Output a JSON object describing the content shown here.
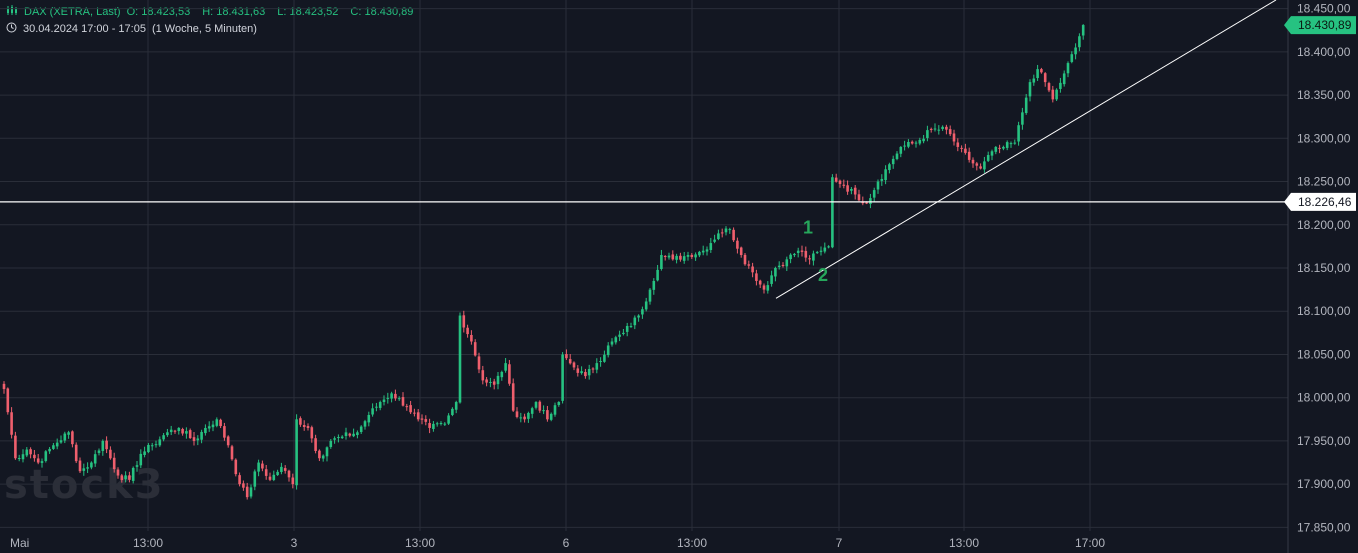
{
  "header": {
    "symbol": "DAX (XETRA, Last)",
    "open_label": "O:",
    "open": "18.423,53",
    "high_label": "H:",
    "high": "18.431,63",
    "low_label": "L:",
    "low": "18.423,52",
    "close_label": "C:",
    "close": "18.430,89",
    "timestamp": "30.04.2024 17:00 - 17:05",
    "period": "(1 Woche, 5 Minuten)",
    "candle_icon": "candlestick-icon",
    "clock_icon": "clock-icon"
  },
  "watermark": "stock3",
  "colors": {
    "background": "#131722",
    "up": "#26c281",
    "down": "#ef5f6d",
    "grid": "#2a2e39",
    "line": "#ffffff",
    "annotation": "#26a65b"
  },
  "chart_data": {
    "type": "candlestick",
    "x_tick_labels": [
      "Mai",
      "13:00",
      "3",
      "13:00",
      "6",
      "13:00",
      "7",
      "13:00",
      "17:00"
    ],
    "y_tick_labels": [
      "18.450,00",
      "18.400,00",
      "18.350,00",
      "18.300,00",
      "18.250,00",
      "18.200,00",
      "18.150,00",
      "18.100,00",
      "18.050,00",
      "18.000,00",
      "17.950,00",
      "17.900,00",
      "17.850,00"
    ],
    "ylim": [
      17840,
      18460
    ],
    "y_ticks": [
      18450,
      18400,
      18350,
      18300,
      18250,
      18200,
      18150,
      18100,
      18050,
      18000,
      17950,
      17900,
      17850
    ],
    "last_price_label": "18.430,89",
    "last_price": 18430.89,
    "horizontal_line_label": "18.226,46",
    "horizontal_line": 18226.46,
    "trendline": {
      "from_price": 18115,
      "to_price": 18460
    },
    "annotations": [
      {
        "text": "1",
        "price": 18197
      },
      {
        "text": "2",
        "price": 18142
      }
    ],
    "path": [
      {
        "c": 0,
        "v": 18010
      },
      {
        "c": 3,
        "v": 17930
      },
      {
        "c": 6,
        "v": 17940
      },
      {
        "c": 9,
        "v": 17925
      },
      {
        "c": 13,
        "v": 17945
      },
      {
        "c": 17,
        "v": 17960
      },
      {
        "c": 20,
        "v": 17915
      },
      {
        "c": 23,
        "v": 17925
      },
      {
        "c": 26,
        "v": 17950
      },
      {
        "c": 30,
        "v": 17910
      },
      {
        "c": 33,
        "v": 17905
      },
      {
        "c": 36,
        "v": 17935
      },
      {
        "c": 39,
        "v": 17945
      },
      {
        "c": 43,
        "v": 17960
      },
      {
        "c": 46,
        "v": 17965
      },
      {
        "c": 50,
        "v": 17950
      },
      {
        "c": 53,
        "v": 17965
      },
      {
        "c": 56,
        "v": 17975
      },
      {
        "c": 59,
        "v": 17945
      },
      {
        "c": 62,
        "v": 17900
      },
      {
        "c": 64,
        "v": 17885
      },
      {
        "c": 67,
        "v": 17925
      },
      {
        "c": 70,
        "v": 17905
      },
      {
        "c": 73,
        "v": 17920
      },
      {
        "c": 76,
        "v": 17900
      },
      {
        "c": 77,
        "v": 17975
      },
      {
        "c": 80,
        "v": 17965
      },
      {
        "c": 83,
        "v": 17930
      },
      {
        "c": 86,
        "v": 17950
      },
      {
        "c": 89,
        "v": 17955
      },
      {
        "c": 93,
        "v": 17960
      },
      {
        "c": 96,
        "v": 17980
      },
      {
        "c": 99,
        "v": 17995
      },
      {
        "c": 102,
        "v": 18005
      },
      {
        "c": 106,
        "v": 17990
      },
      {
        "c": 109,
        "v": 17975
      },
      {
        "c": 112,
        "v": 17965
      },
      {
        "c": 116,
        "v": 17970
      },
      {
        "c": 119,
        "v": 17995
      },
      {
        "c": 120,
        "v": 18095
      },
      {
        "c": 123,
        "v": 18065
      },
      {
        "c": 126,
        "v": 18020
      },
      {
        "c": 129,
        "v": 18015
      },
      {
        "c": 132,
        "v": 18040
      },
      {
        "c": 134,
        "v": 17985
      },
      {
        "c": 137,
        "v": 17975
      },
      {
        "c": 140,
        "v": 17995
      },
      {
        "c": 143,
        "v": 17975
      },
      {
        "c": 146,
        "v": 17995
      },
      {
        "c": 147,
        "v": 18050
      },
      {
        "c": 150,
        "v": 18035
      },
      {
        "c": 153,
        "v": 18025
      },
      {
        "c": 156,
        "v": 18040
      },
      {
        "c": 160,
        "v": 18065
      },
      {
        "c": 163,
        "v": 18075
      },
      {
        "c": 167,
        "v": 18095
      },
      {
        "c": 170,
        "v": 18125
      },
      {
        "c": 173,
        "v": 18165
      },
      {
        "c": 176,
        "v": 18160
      },
      {
        "c": 180,
        "v": 18165
      },
      {
        "c": 184,
        "v": 18170
      },
      {
        "c": 188,
        "v": 18190
      },
      {
        "c": 191,
        "v": 18195
      },
      {
        "c": 194,
        "v": 18165
      },
      {
        "c": 197,
        "v": 18145
      },
      {
        "c": 200,
        "v": 18125
      },
      {
        "c": 203,
        "v": 18150
      },
      {
        "c": 206,
        "v": 18160
      },
      {
        "c": 209,
        "v": 18170
      },
      {
        "c": 212,
        "v": 18160
      },
      {
        "c": 215,
        "v": 18170
      },
      {
        "c": 217,
        "v": 18175
      },
      {
        "c": 218,
        "v": 18255
      },
      {
        "c": 221,
        "v": 18245
      },
      {
        "c": 224,
        "v": 18235
      },
      {
        "c": 227,
        "v": 18225
      },
      {
        "c": 230,
        "v": 18250
      },
      {
        "c": 233,
        "v": 18270
      },
      {
        "c": 236,
        "v": 18290
      },
      {
        "c": 240,
        "v": 18295
      },
      {
        "c": 244,
        "v": 18310
      },
      {
        "c": 248,
        "v": 18310
      },
      {
        "c": 251,
        "v": 18290
      },
      {
        "c": 254,
        "v": 18275
      },
      {
        "c": 257,
        "v": 18265
      },
      {
        "c": 260,
        "v": 18285
      },
      {
        "c": 263,
        "v": 18290
      },
      {
        "c": 266,
        "v": 18295
      },
      {
        "c": 268,
        "v": 18330
      },
      {
        "c": 270,
        "v": 18365
      },
      {
        "c": 272,
        "v": 18380
      },
      {
        "c": 274,
        "v": 18365
      },
      {
        "c": 276,
        "v": 18345
      },
      {
        "c": 279,
        "v": 18375
      },
      {
        "c": 282,
        "v": 18405
      },
      {
        "c": 284,
        "v": 18431
      }
    ]
  }
}
